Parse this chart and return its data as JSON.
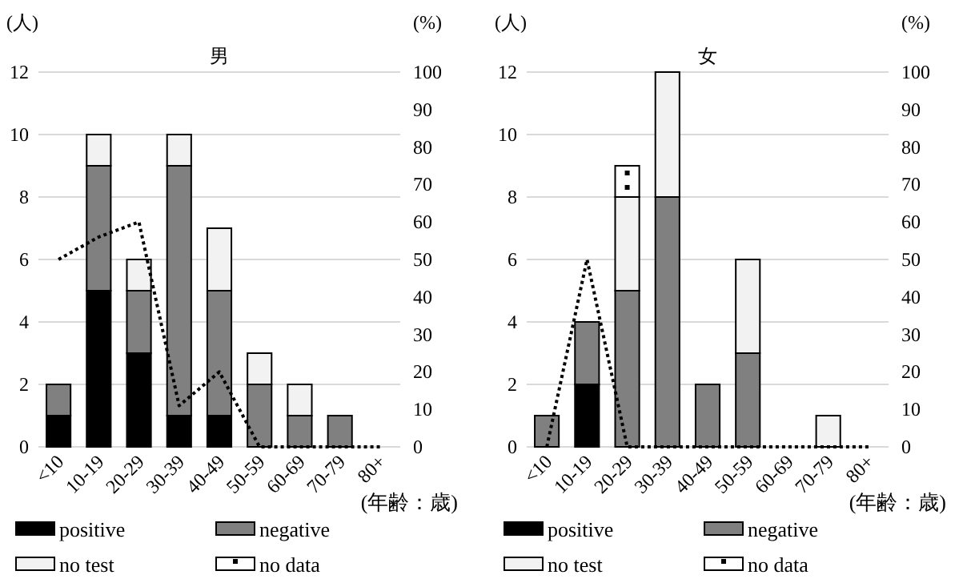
{
  "chart_data": [
    {
      "type": "bar",
      "title": "男",
      "xlabel": "(年齢：歳)",
      "ylabel": "(人)",
      "y2label": "(%)",
      "stacked": true,
      "grid": "y",
      "legend": "bottom",
      "categories": [
        "<10",
        "10-19",
        "20-29",
        "30-39",
        "40-49",
        "50-59",
        "60-69",
        "70-79",
        "80+"
      ],
      "ylim": [
        0,
        12
      ],
      "yticks": [
        0,
        2,
        4,
        6,
        8,
        10,
        12
      ],
      "y2lim": [
        0,
        100
      ],
      "y2ticks": [
        0,
        10,
        20,
        30,
        40,
        50,
        60,
        70,
        80,
        90,
        100
      ],
      "series": [
        {
          "name": "positive",
          "color": "#000000",
          "values": [
            1,
            5,
            3,
            1,
            1,
            0,
            0,
            0,
            0
          ]
        },
        {
          "name": "negative",
          "color": "#808080",
          "values": [
            1,
            4,
            2,
            8,
            4,
            2,
            1,
            1,
            0
          ]
        },
        {
          "name": "no test",
          "color": "#f2f2f2",
          "values": [
            0,
            1,
            1,
            1,
            2,
            1,
            1,
            0,
            0
          ]
        },
        {
          "name": "no data",
          "color": "#ffffff",
          "values": [
            0,
            0,
            0,
            0,
            0,
            0,
            0,
            0,
            0
          ]
        },
        {
          "type": "line",
          "axis": "y2",
          "color": "#000000",
          "line_style": "dotted",
          "values": [
            50,
            56,
            60,
            11,
            20,
            0,
            0,
            0,
            0
          ]
        }
      ]
    },
    {
      "type": "bar",
      "title": "女",
      "xlabel": "(年齢：歳)",
      "ylabel": "(人)",
      "y2label": "(%)",
      "stacked": true,
      "grid": "y",
      "legend": "bottom",
      "categories": [
        "<10",
        "10-19",
        "20-29",
        "30-39",
        "40-49",
        "50-59",
        "60-69",
        "70-79",
        "80+"
      ],
      "ylim": [
        0,
        12
      ],
      "yticks": [
        0,
        2,
        4,
        6,
        8,
        10,
        12
      ],
      "y2lim": [
        0,
        100
      ],
      "y2ticks": [
        0,
        10,
        20,
        30,
        40,
        50,
        60,
        70,
        80,
        90,
        100
      ],
      "series": [
        {
          "name": "positive",
          "color": "#000000",
          "values": [
            0,
            2,
            0,
            0,
            0,
            0,
            0,
            0,
            0
          ]
        },
        {
          "name": "negative",
          "color": "#808080",
          "values": [
            1,
            2,
            5,
            8,
            2,
            3,
            0,
            0,
            0
          ]
        },
        {
          "name": "no test",
          "color": "#f2f2f2",
          "values": [
            0,
            0,
            3,
            4,
            0,
            3,
            0,
            1,
            0
          ]
        },
        {
          "name": "no data",
          "color": "#ffffff",
          "values": [
            0,
            0,
            1,
            0,
            0,
            0,
            0,
            0,
            0
          ]
        },
        {
          "type": "line",
          "axis": "y2",
          "color": "#000000",
          "line_style": "dotted",
          "values": [
            0,
            50,
            0,
            0,
            0,
            0,
            0,
            0,
            0
          ]
        }
      ]
    }
  ]
}
